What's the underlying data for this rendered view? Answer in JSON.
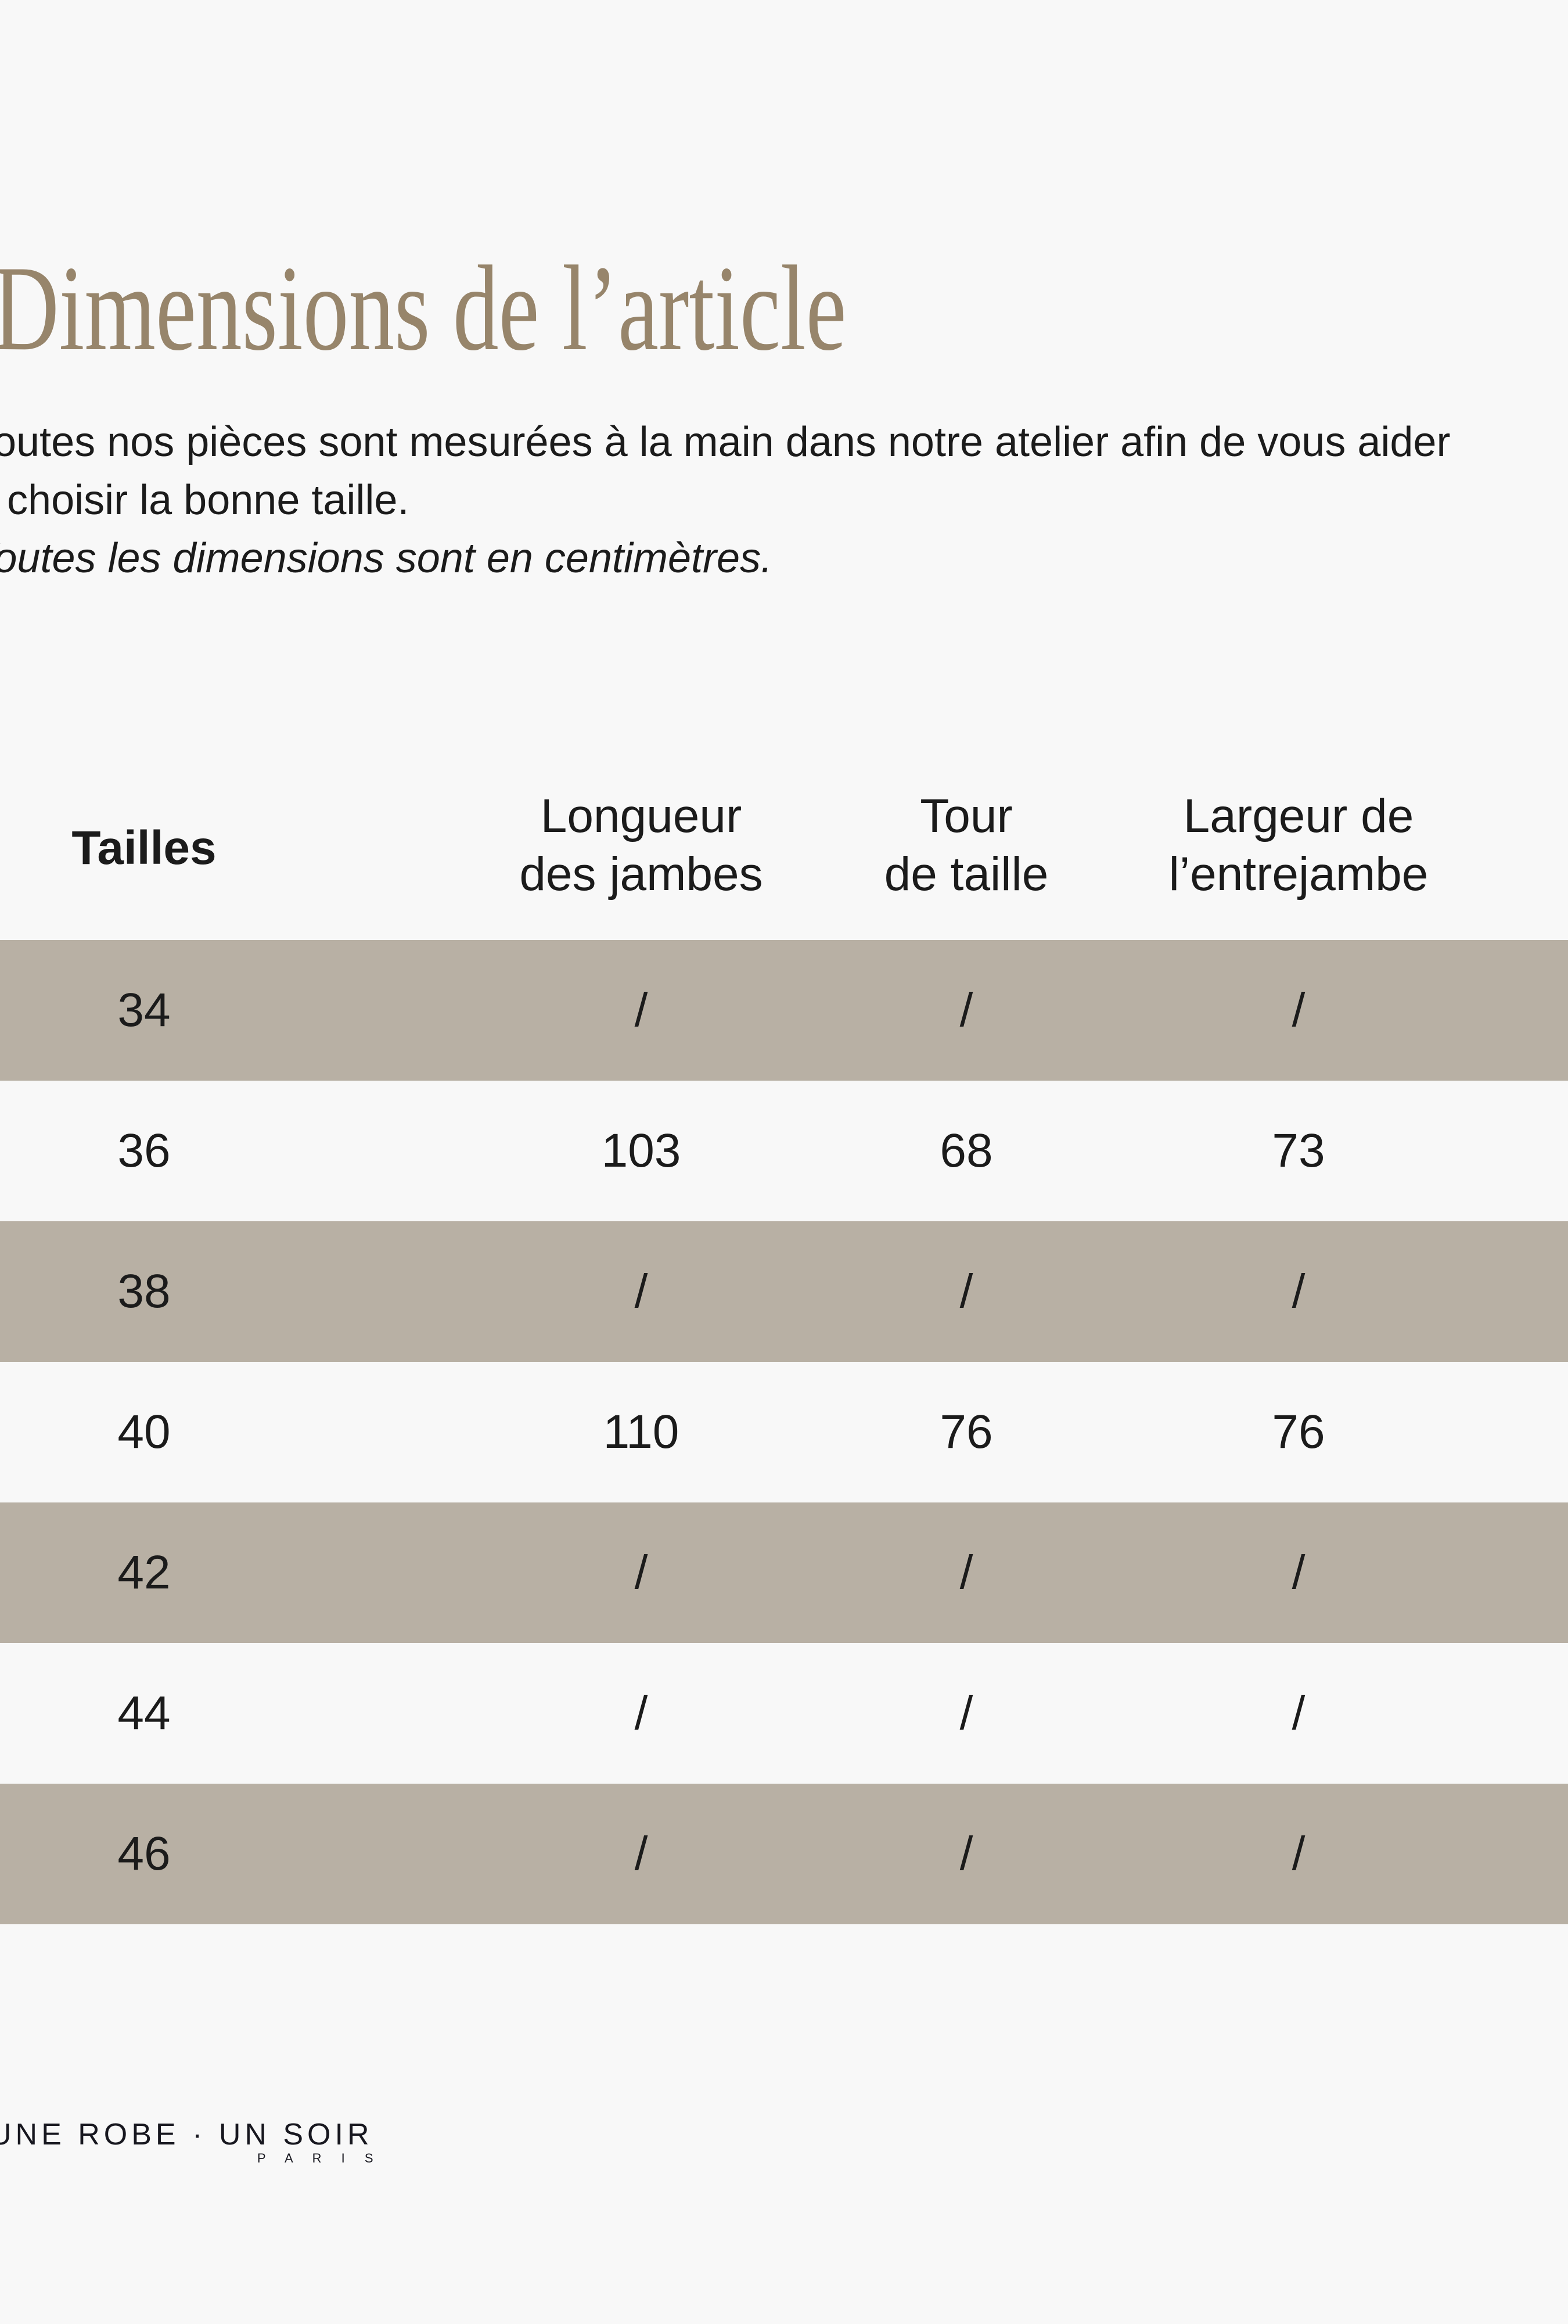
{
  "page": {
    "background_color": "#f8f8f8",
    "stripe_color": "#b8b0a4",
    "title_color": "#97856b",
    "text_color": "#1b1b1b"
  },
  "title": "Dimensions de l’article",
  "intro": {
    "line1": "Toutes nos pièces sont mesurées à la main dans notre atelier afin de vous aider",
    "line2": "à choisir la bonne taille.",
    "note": "Toutes les dimensions sont en centimètres."
  },
  "table": {
    "headers": [
      {
        "line1": "Tailles",
        "line2": ""
      },
      {
        "line1": "Longueur",
        "line2": "des jambes"
      },
      {
        "line1": "Tour",
        "line2": "de taille"
      },
      {
        "line1": "Largeur de",
        "line2": "l’entrejambe"
      }
    ],
    "rows": [
      {
        "size": "34",
        "values": [
          "/",
          "/",
          "/"
        ]
      },
      {
        "size": "36",
        "values": [
          "103",
          "68",
          "73"
        ]
      },
      {
        "size": "38",
        "values": [
          "/",
          "/",
          "/"
        ]
      },
      {
        "size": "40",
        "values": [
          "110",
          "76",
          "76"
        ]
      },
      {
        "size": "42",
        "values": [
          "/",
          "/",
          "/"
        ]
      },
      {
        "size": "44",
        "values": [
          "/",
          "/",
          "/"
        ]
      },
      {
        "size": "46",
        "values": [
          "/",
          "/",
          "/"
        ]
      }
    ]
  },
  "footer": {
    "brand": "UNE ROBE · UN SOIR",
    "brand_sub": "P A R I S"
  }
}
